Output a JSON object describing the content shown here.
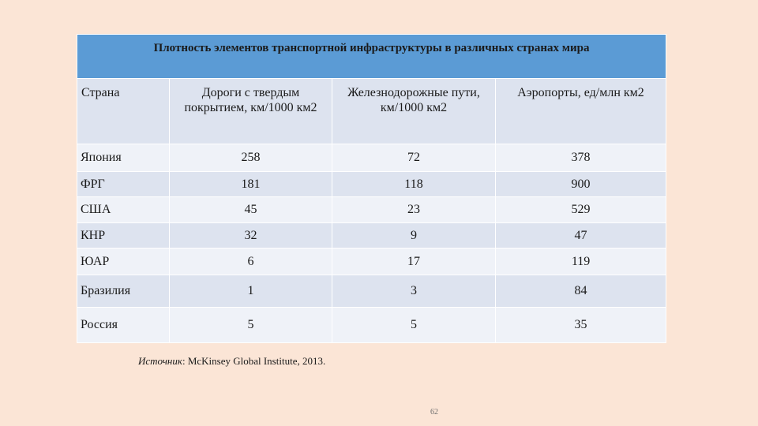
{
  "table": {
    "title": "Плотность элементов транспортной инфраструктуры в различных странах мира",
    "headers": [
      "Страна",
      "Дороги с твердым покрытием, км/1000 км2",
      "Железнодорожные пути, км/1000 км2",
      "Аэропорты, ед/млн км2"
    ],
    "rows": [
      [
        "Япония",
        "258",
        "72",
        "378"
      ],
      [
        "ФРГ",
        "181",
        "118",
        "900"
      ],
      [
        "США",
        "45",
        "23",
        "529"
      ],
      [
        "КНР",
        "32",
        "9",
        "47"
      ],
      [
        "ЮАР",
        "6",
        "17",
        "119"
      ],
      [
        "Бразилия",
        "1",
        "3",
        "84"
      ],
      [
        "Россия",
        "5",
        "5",
        "35"
      ]
    ]
  },
  "source": {
    "label": "Источник",
    "text": ": McKinsey Global Institute, 2013."
  },
  "page_number": "62"
}
